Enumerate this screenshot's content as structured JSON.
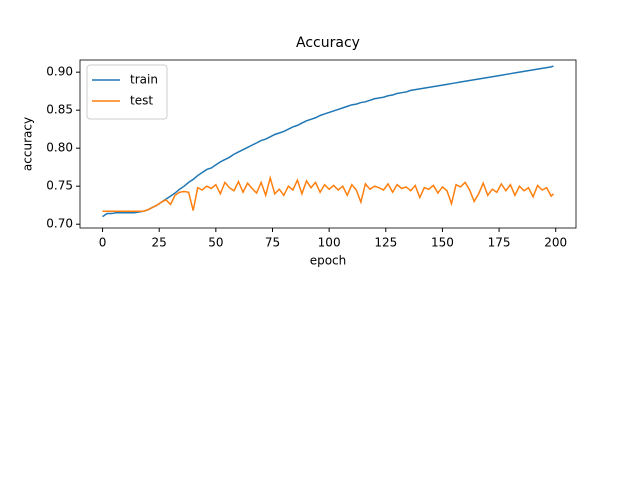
{
  "chart_data": {
    "type": "line",
    "title": "Accuracy",
    "xlabel": "epoch",
    "ylabel": "accuracy",
    "x": [
      0,
      2,
      4,
      6,
      8,
      10,
      12,
      14,
      16,
      18,
      20,
      22,
      24,
      26,
      28,
      30,
      32,
      34,
      36,
      38,
      40,
      42,
      44,
      46,
      48,
      50,
      52,
      54,
      56,
      58,
      60,
      62,
      64,
      66,
      68,
      70,
      72,
      74,
      76,
      78,
      80,
      82,
      84,
      86,
      88,
      90,
      92,
      94,
      96,
      98,
      100,
      102,
      104,
      106,
      108,
      110,
      112,
      114,
      116,
      118,
      120,
      122,
      124,
      126,
      128,
      130,
      132,
      134,
      136,
      138,
      140,
      142,
      144,
      146,
      148,
      150,
      152,
      154,
      156,
      158,
      160,
      162,
      164,
      166,
      168,
      170,
      172,
      174,
      176,
      178,
      180,
      182,
      184,
      186,
      188,
      190,
      192,
      194,
      196,
      198,
      199
    ],
    "series": [
      {
        "name": "train",
        "color": "#1f77b4",
        "values": [
          0.71,
          0.714,
          0.714,
          0.715,
          0.715,
          0.715,
          0.715,
          0.715,
          0.716,
          0.717,
          0.719,
          0.722,
          0.725,
          0.729,
          0.733,
          0.737,
          0.741,
          0.746,
          0.75,
          0.755,
          0.759,
          0.764,
          0.768,
          0.772,
          0.774,
          0.778,
          0.782,
          0.785,
          0.788,
          0.792,
          0.795,
          0.798,
          0.801,
          0.804,
          0.807,
          0.81,
          0.812,
          0.815,
          0.818,
          0.82,
          0.822,
          0.825,
          0.828,
          0.83,
          0.833,
          0.836,
          0.838,
          0.84,
          0.843,
          0.845,
          0.847,
          0.849,
          0.851,
          0.853,
          0.855,
          0.857,
          0.858,
          0.86,
          0.861,
          0.863,
          0.865,
          0.866,
          0.867,
          0.869,
          0.87,
          0.872,
          0.873,
          0.874,
          0.876,
          0.877,
          0.878,
          0.879,
          0.88,
          0.881,
          0.882,
          0.883,
          0.884,
          0.885,
          0.886,
          0.887,
          0.888,
          0.889,
          0.89,
          0.891,
          0.892,
          0.893,
          0.894,
          0.895,
          0.896,
          0.897,
          0.898,
          0.899,
          0.9,
          0.901,
          0.902,
          0.903,
          0.904,
          0.905,
          0.906,
          0.907,
          0.908
        ]
      },
      {
        "name": "test",
        "color": "#ff7f0e",
        "values": [
          0.717,
          0.717,
          0.717,
          0.717,
          0.717,
          0.717,
          0.717,
          0.717,
          0.717,
          0.717,
          0.719,
          0.722,
          0.725,
          0.729,
          0.732,
          0.726,
          0.738,
          0.742,
          0.743,
          0.742,
          0.718,
          0.748,
          0.745,
          0.75,
          0.747,
          0.752,
          0.74,
          0.755,
          0.748,
          0.744,
          0.756,
          0.742,
          0.754,
          0.747,
          0.741,
          0.755,
          0.738,
          0.761,
          0.74,
          0.746,
          0.738,
          0.75,
          0.745,
          0.758,
          0.74,
          0.757,
          0.748,
          0.755,
          0.742,
          0.752,
          0.746,
          0.751,
          0.745,
          0.75,
          0.738,
          0.752,
          0.745,
          0.729,
          0.753,
          0.746,
          0.75,
          0.748,
          0.745,
          0.753,
          0.742,
          0.752,
          0.747,
          0.749,
          0.744,
          0.751,
          0.735,
          0.748,
          0.746,
          0.751,
          0.741,
          0.749,
          0.744,
          0.727,
          0.752,
          0.749,
          0.755,
          0.745,
          0.73,
          0.74,
          0.754,
          0.738,
          0.746,
          0.742,
          0.753,
          0.744,
          0.752,
          0.738,
          0.75,
          0.744,
          0.748,
          0.736,
          0.751,
          0.745,
          0.748,
          0.737,
          0.74
        ]
      }
    ],
    "xlim": [
      -9.95,
      208.95
    ],
    "xticks": [
      0,
      25,
      50,
      75,
      100,
      125,
      150,
      175,
      200
    ],
    "ylim": [
      0.695,
      0.916
    ],
    "yticks": [
      {
        "value": 0.7,
        "label": "0.70"
      },
      0.75,
      {
        "value": 0.8,
        "label": "0.80"
      },
      0.85,
      {
        "value": 0.9,
        "label": "0.90"
      }
    ],
    "legend": "upper left"
  }
}
